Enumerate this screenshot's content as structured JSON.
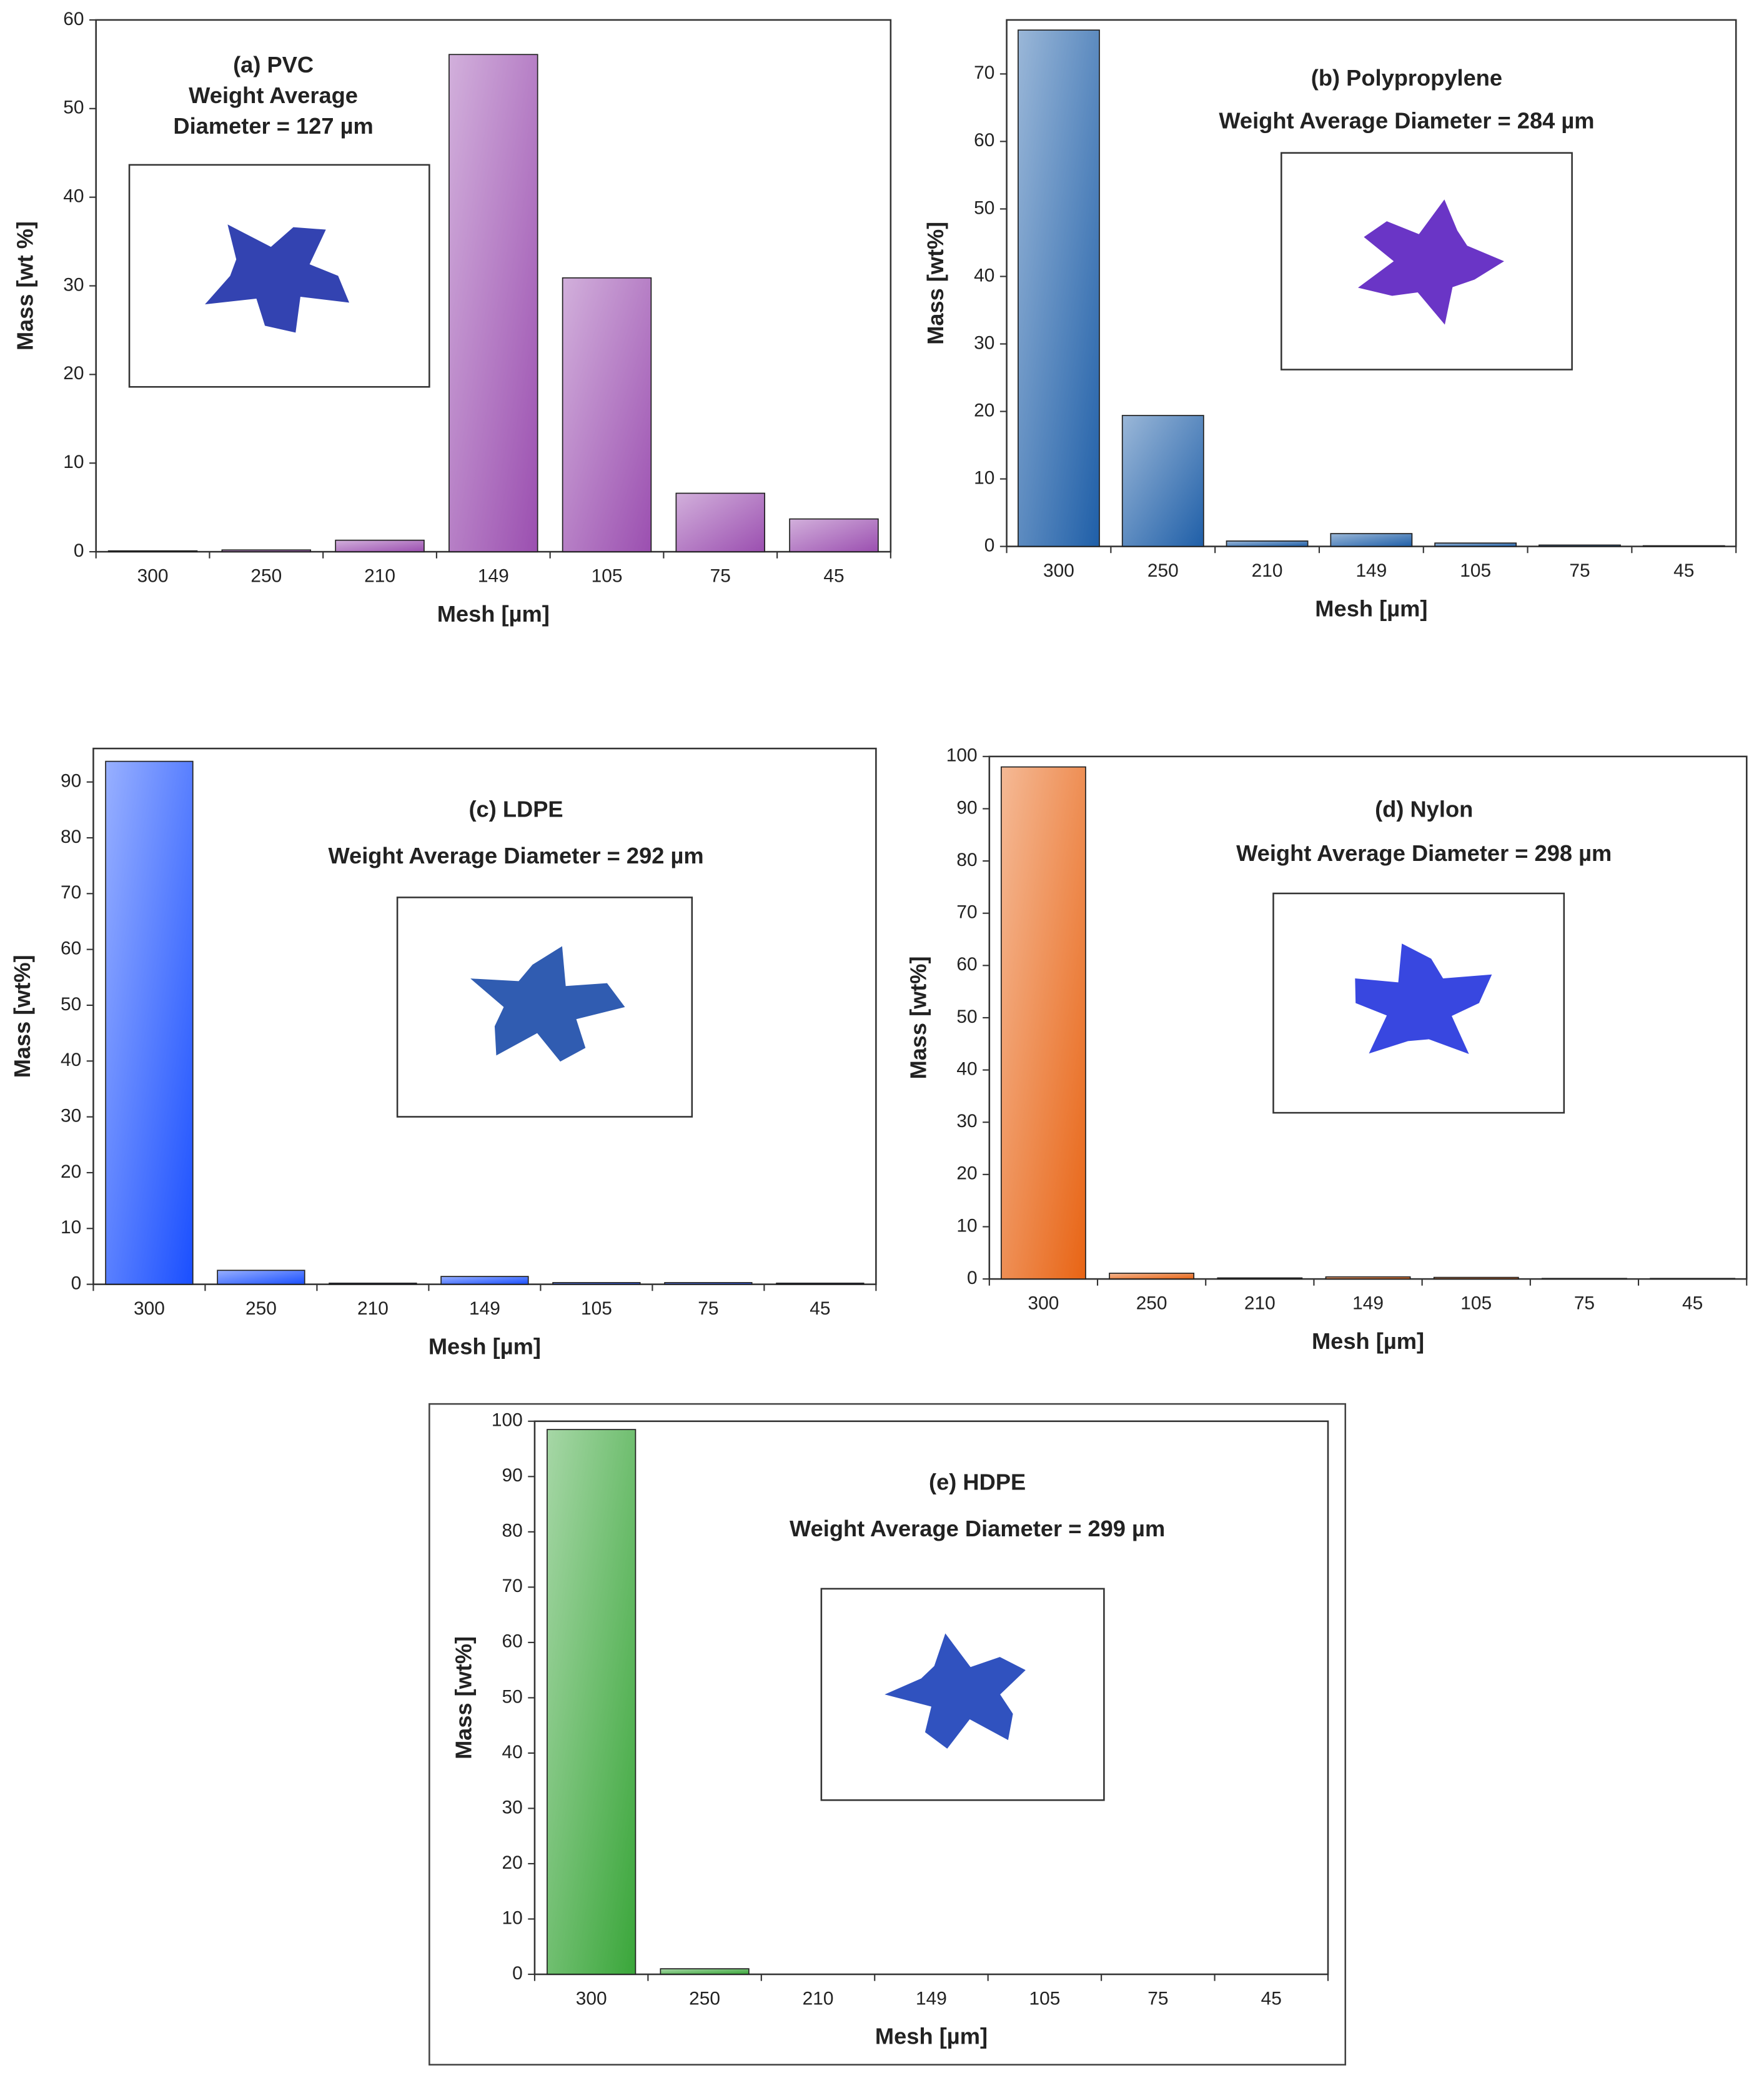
{
  "chart_data": [
    {
      "type": "bar",
      "title": "(a) PVC",
      "subtitle_lines": [
        "Weight Average",
        "Diameter = 127 µm"
      ],
      "categories": [
        "300",
        "250",
        "210",
        "149",
        "105",
        "75",
        "45"
      ],
      "values": [
        0.1,
        0.2,
        1.3,
        56.1,
        30.9,
        6.6,
        3.7
      ],
      "color": "#9b4fb0",
      "ylim": [
        0,
        60
      ],
      "yticks": [
        0,
        10,
        20,
        30,
        40,
        50,
        60
      ],
      "xlabel": "Mesh [µm]",
      "ylabel": "Mass [wt %]"
    },
    {
      "type": "bar",
      "title": "(b) Polypropylene",
      "subtitle_lines": [
        "Weight Average Diameter = 284 µm"
      ],
      "categories": [
        "300",
        "250",
        "210",
        "149",
        "105",
        "75",
        "45"
      ],
      "values": [
        76.5,
        19.4,
        0.8,
        1.9,
        0.5,
        0.2,
        0.1
      ],
      "color": "#1f5fa8",
      "ylim": [
        0,
        78
      ],
      "yticks": [
        0,
        10,
        20,
        30,
        40,
        50,
        60,
        70
      ],
      "xlabel": "Mesh [µm]",
      "ylabel": "Mass [wt%]"
    },
    {
      "type": "bar",
      "title": "(c) LDPE",
      "subtitle_lines": [
        "Weight Average Diameter = 292 µm"
      ],
      "categories": [
        "300",
        "250",
        "210",
        "149",
        "105",
        "75",
        "45"
      ],
      "values": [
        93.7,
        2.5,
        0.2,
        1.4,
        0.3,
        0.3,
        0.2
      ],
      "color": "#1a4fff",
      "ylim": [
        0,
        96
      ],
      "yticks": [
        0,
        10,
        20,
        30,
        40,
        50,
        60,
        70,
        80,
        90
      ],
      "xlabel": "Mesh  [µm]",
      "ylabel": "Mass [wt%]"
    },
    {
      "type": "bar",
      "title": "(d) Nylon",
      "subtitle_lines": [
        "Weight Average Diameter = 298 µm"
      ],
      "categories": [
        "300",
        "250",
        "210",
        "149",
        "105",
        "75",
        "45"
      ],
      "values": [
        98,
        1.1,
        0.2,
        0.4,
        0.3,
        0.1,
        0.1
      ],
      "color": "#e86414",
      "ylim": [
        0,
        100
      ],
      "yticks": [
        0,
        10,
        20,
        30,
        40,
        50,
        60,
        70,
        80,
        90,
        100
      ],
      "xlabel": "Mesh [µm]",
      "ylabel": "Mass [wt%]"
    },
    {
      "type": "bar",
      "title": "(e) HDPE",
      "subtitle_lines": [
        "Weight Average Diameter = 299 µm"
      ],
      "categories": [
        "300",
        "250",
        "210",
        "149",
        "105",
        "75",
        "45"
      ],
      "values": [
        98.5,
        1.0,
        0,
        0,
        0,
        0,
        0
      ],
      "color": "#3aa63a",
      "ylim": [
        0,
        100
      ],
      "yticks": [
        0,
        10,
        20,
        30,
        40,
        50,
        60,
        70,
        80,
        90,
        100
      ],
      "xlabel": "Mesh [µm]",
      "ylabel": "Mass [wt%]"
    }
  ]
}
